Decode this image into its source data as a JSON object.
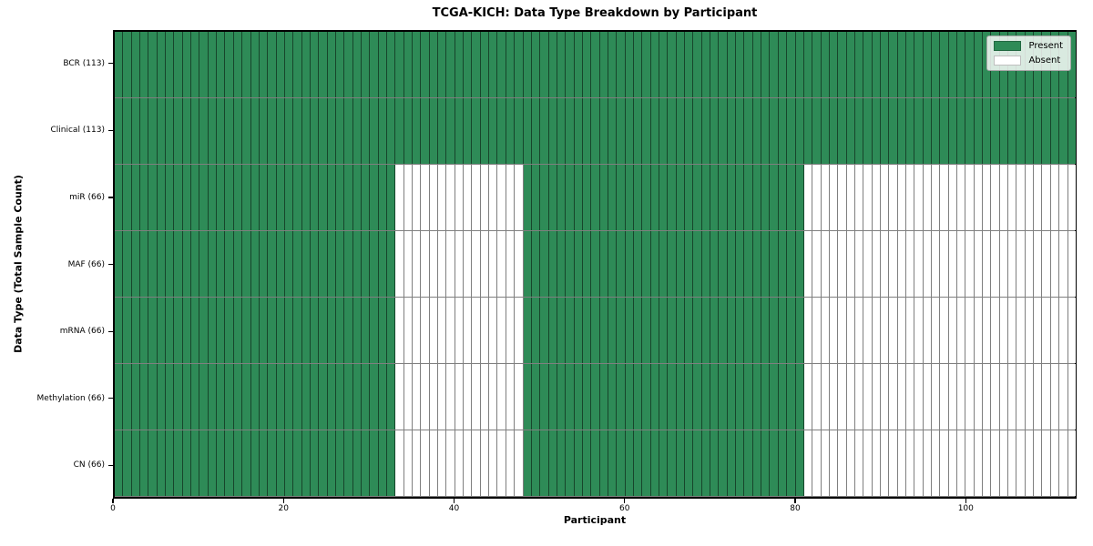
{
  "chart_data": {
    "type": "heatmap",
    "title": "TCGA-KICH: Data Type Breakdown by Participant",
    "xlabel": "Participant",
    "ylabel": "Data Type (Total Sample Count)",
    "x_ticks": [
      0,
      20,
      40,
      60,
      80,
      100
    ],
    "x_range": [
      0,
      113
    ],
    "n_participants": 113,
    "rows": [
      {
        "label": "BCR (113)",
        "data_type": "BCR",
        "count": 113,
        "present_ranges": [
          [
            0,
            113
          ]
        ]
      },
      {
        "label": "Clinical (113)",
        "data_type": "Clinical",
        "count": 113,
        "present_ranges": [
          [
            0,
            113
          ]
        ]
      },
      {
        "label": "miR (66)",
        "data_type": "miR",
        "count": 66,
        "present_ranges": [
          [
            0,
            33
          ],
          [
            48,
            81
          ]
        ]
      },
      {
        "label": "MAF (66)",
        "data_type": "MAF",
        "count": 66,
        "present_ranges": [
          [
            0,
            33
          ],
          [
            48,
            81
          ]
        ]
      },
      {
        "label": "mRNA (66)",
        "data_type": "mRNA",
        "count": 66,
        "present_ranges": [
          [
            0,
            33
          ],
          [
            48,
            81
          ]
        ]
      },
      {
        "label": "Methylation (66)",
        "data_type": "Methylation",
        "count": 66,
        "present_ranges": [
          [
            0,
            33
          ],
          [
            48,
            81
          ]
        ]
      },
      {
        "label": "CN (66)",
        "data_type": "CN",
        "count": 66,
        "present_ranges": [
          [
            0,
            33
          ],
          [
            48,
            81
          ]
        ]
      }
    ],
    "legend": {
      "position": "upper right",
      "entries": [
        {
          "label": "Present",
          "color": "#2e8b57"
        },
        {
          "label": "Absent",
          "color": "#ffffff"
        }
      ]
    },
    "colors": {
      "present": "#2e8b57",
      "absent": "#ffffff",
      "cell_edge": "rgba(0,0,0,0.5)",
      "spine": "#000000"
    },
    "grid": true
  }
}
